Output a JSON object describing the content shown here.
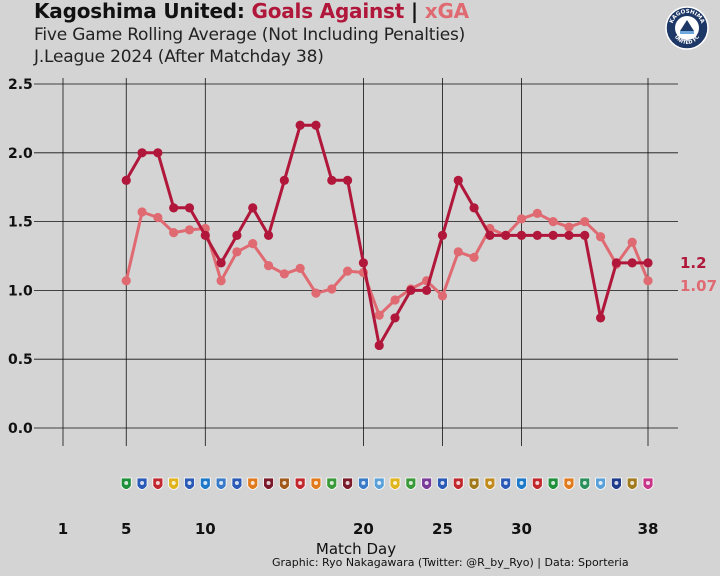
{
  "header": {
    "title_main": "Kagoshima United: ",
    "title_ga": "Goals Against",
    "title_sep": " | ",
    "title_xga": "xGA",
    "subtitle1": "Five Game Rolling Average (Not Including Penalties)",
    "subtitle2": "J.League 2024 (After Matchday 38)",
    "badge_top_text": "KAGOSHIMA",
    "badge_bottom_text": "UNITED FC"
  },
  "footer": {
    "credit": "Graphic: Ryo Nakagawara (Twitter: @R_by_Ryo) | Data: Sporteria"
  },
  "colors": {
    "background": "#d4d4d4",
    "goals_against": "#b0173a",
    "xga": "#e06a72",
    "grid": "#111111",
    "badge": "#1d3766"
  },
  "chart_data": {
    "type": "line",
    "title": "Kagoshima United: Goals Against | xGA",
    "xlabel": "Match Day",
    "ylabel": "",
    "xlim": [
      0,
      39
    ],
    "ylim": [
      -0.1,
      2.55
    ],
    "x_ticks": [
      1,
      5,
      10,
      20,
      25,
      30,
      38
    ],
    "y_ticks": [
      0.0,
      0.5,
      1.0,
      1.5,
      2.0,
      2.5
    ],
    "y_tick_labels": [
      "0.0",
      "0.5",
      "1.0",
      "1.5",
      "2.0",
      "2.5"
    ],
    "x": [
      5,
      6,
      7,
      8,
      9,
      10,
      11,
      12,
      13,
      14,
      15,
      16,
      17,
      18,
      19,
      20,
      21,
      22,
      23,
      24,
      25,
      26,
      27,
      28,
      29,
      30,
      31,
      32,
      33,
      34,
      35,
      36,
      37,
      38
    ],
    "series": [
      {
        "name": "Goals Against",
        "color": "#b0173a",
        "values": [
          1.8,
          2.0,
          2.0,
          1.6,
          1.6,
          1.4,
          1.2,
          1.4,
          1.6,
          1.4,
          1.8,
          2.2,
          2.2,
          1.8,
          1.8,
          1.2,
          0.6,
          0.8,
          1.0,
          1.0,
          1.4,
          1.8,
          1.6,
          1.4,
          1.4,
          1.4,
          1.4,
          1.4,
          1.4,
          1.4,
          0.8,
          1.2,
          1.2,
          1.2
        ],
        "end_label": "1.2"
      },
      {
        "name": "xGA",
        "color": "#e06a72",
        "values": [
          1.07,
          1.57,
          1.53,
          1.42,
          1.44,
          1.45,
          1.07,
          1.28,
          1.34,
          1.18,
          1.12,
          1.16,
          0.98,
          1.01,
          1.14,
          1.13,
          0.82,
          0.93,
          1.01,
          1.07,
          0.96,
          1.28,
          1.24,
          1.45,
          1.4,
          1.52,
          1.56,
          1.5,
          1.46,
          1.5,
          1.39,
          1.19,
          1.35,
          1.07
        ],
        "end_label": "1.07"
      }
    ]
  },
  "opponent_icons": [
    "icon-md5",
    "icon-md6",
    "icon-md7",
    "icon-md8",
    "icon-md9",
    "icon-md10",
    "icon-md11",
    "icon-md12",
    "icon-md13",
    "icon-md14",
    "icon-md15",
    "icon-md16",
    "icon-md17",
    "icon-md18",
    "icon-md19",
    "icon-md20",
    "icon-md21",
    "icon-md22",
    "icon-md23",
    "icon-md24",
    "icon-md25",
    "icon-md26",
    "icon-md27",
    "icon-md28",
    "icon-md29",
    "icon-md30",
    "icon-md31",
    "icon-md32",
    "icon-md33",
    "icon-md34",
    "icon-md35",
    "icon-md36",
    "icon-md37",
    "icon-md38"
  ],
  "opponent_icon_colors": [
    "#1e8f3b",
    "#2a5ab5",
    "#c0282d",
    "#e0b41c",
    "#2a5ab5",
    "#1d78c8",
    "#3a7bc8",
    "#2a5ab5",
    "#e07a1c",
    "#7a1a2a",
    "#a05a1c",
    "#c0282d",
    "#e07a1c",
    "#3a9a3a",
    "#7a1a2a",
    "#3a7bc8",
    "#5aa0d8",
    "#e0b41c",
    "#3a9a3a",
    "#7a3a9a",
    "#2a5ab5",
    "#c0282d",
    "#a07a1c",
    "#c08a1c",
    "#2a5ab5",
    "#1d78c8",
    "#c0282d",
    "#1e8f3b",
    "#e07a1c",
    "#2a8f5a",
    "#5aa0d8",
    "#1e3a8a",
    "#a07a1c",
    "#c8348a"
  ]
}
